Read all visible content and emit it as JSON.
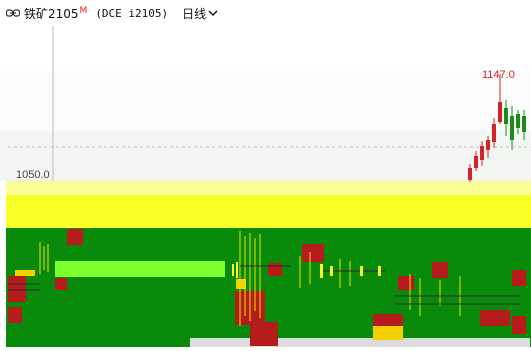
{
  "toolbar": {
    "icon": "link-icon",
    "symbol": "铁矿2105",
    "badge": "M",
    "code": "(DCE i2105)",
    "period": "日线",
    "period_icon": "chevron-down-icon"
  },
  "chart_data": {
    "type": "candlestick",
    "price_line": "1050.0",
    "high_label": "1147.0",
    "colors": {
      "up": "#d2232a",
      "down": "#1a8c1a",
      "green_band": "#0a8a0a",
      "yellow_band": "#e8ff2a",
      "red_block": "#b71c1c",
      "lime": "#7CFF2A"
    }
  }
}
